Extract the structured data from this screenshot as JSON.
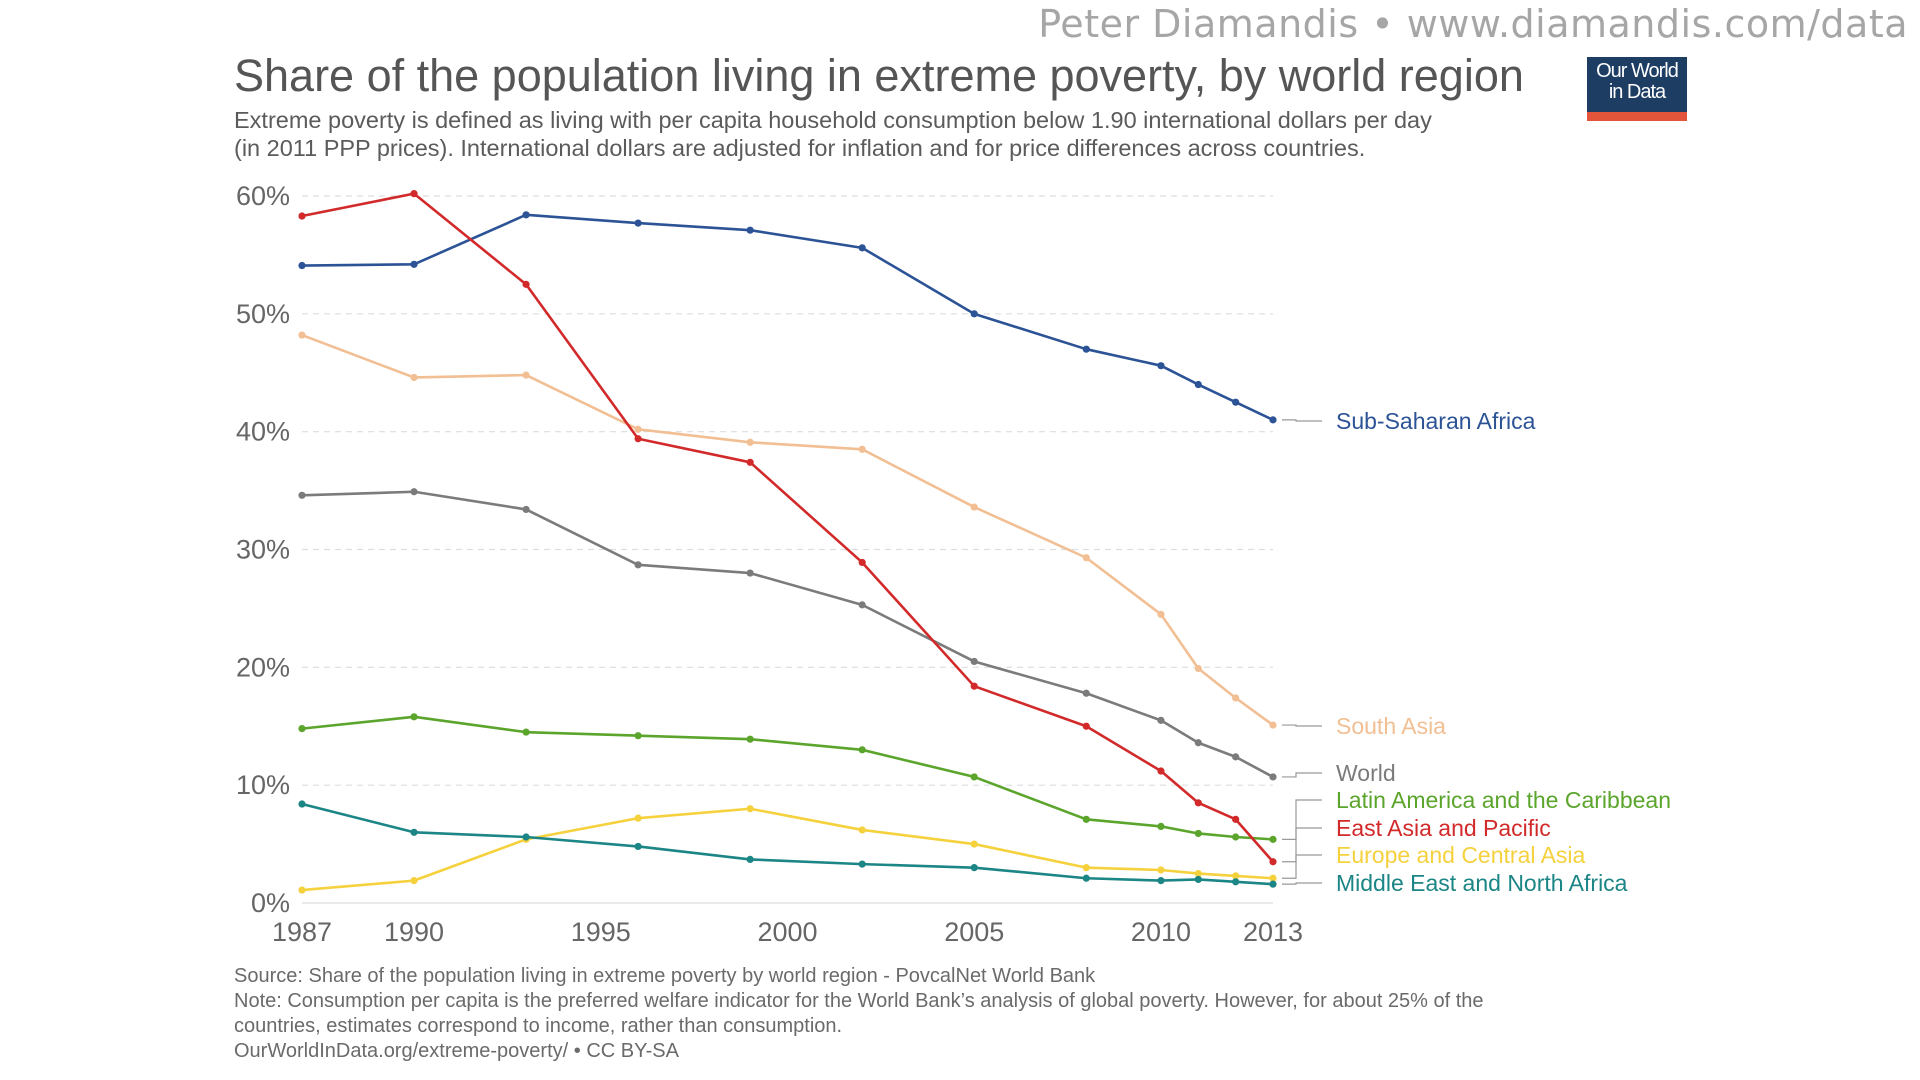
{
  "credit": "Peter Diamandis  •  www.diamandis.com/data",
  "title": "Share of the population living in extreme poverty, by world region",
  "subtitle_line1": "Extreme poverty is defined as living with per capita household consumption below 1.90 international dollars per day",
  "subtitle_line2": "(in 2011 PPP prices). International dollars are adjusted for inflation and for price differences across countries.",
  "logo": {
    "line1": "Our World",
    "line2": "in Data"
  },
  "footer": {
    "source": "Source: Share of the population living in extreme poverty by world region - PovcalNet World Bank",
    "note1": "Note: Consumption per capita is the preferred welfare indicator for the World Bank’s analysis of global poverty. However, for about 25% of the",
    "note2": "countries, estimates correspond to income, rather than consumption.",
    "license": "OurWorldInData.org/extreme-poverty/ • CC BY-SA"
  },
  "chart_data": {
    "type": "line",
    "title": "Share of the population living in extreme poverty, by world region",
    "xlabel": "",
    "ylabel": "",
    "xlim": [
      1987,
      2013
    ],
    "ylim": [
      0,
      60
    ],
    "grid": true,
    "legend": "right (end labels)",
    "x_ticks": [
      1987,
      1990,
      1995,
      2000,
      2005,
      2010,
      2013
    ],
    "y_ticks": [
      0,
      10,
      20,
      30,
      40,
      50,
      60
    ],
    "y_tick_labels": [
      "0%",
      "10%",
      "20%",
      "30%",
      "40%",
      "50%",
      "60%"
    ],
    "x": [
      1987,
      1990,
      1993,
      1996,
      1999,
      2002,
      2005,
      2008,
      2010,
      2011,
      2012,
      2013
    ],
    "series": [
      {
        "name": "Sub-Saharan Africa",
        "color": "#2c5396",
        "values": [
          54.1,
          54.2,
          58.4,
          57.7,
          57.1,
          55.6,
          50.0,
          47.0,
          45.6,
          44.0,
          42.5,
          41.0
        ]
      },
      {
        "name": "South Asia",
        "color": "#f1bf93",
        "values": [
          48.2,
          44.6,
          44.8,
          40.2,
          39.1,
          38.5,
          33.6,
          29.3,
          24.5,
          19.9,
          17.4,
          15.1
        ]
      },
      {
        "name": "World",
        "color": "#7b7b7b",
        "values": [
          34.6,
          34.9,
          33.4,
          28.7,
          28.0,
          25.3,
          20.5,
          17.8,
          15.5,
          13.6,
          12.4,
          10.7
        ]
      },
      {
        "name": "Latin America and the Caribbean",
        "color": "#5ba52c",
        "values": [
          14.8,
          15.8,
          14.5,
          14.2,
          13.9,
          13.0,
          10.7,
          7.1,
          6.5,
          5.9,
          5.6,
          5.4
        ]
      },
      {
        "name": "East Asia and Pacific",
        "color": "#d22a2a",
        "values": [
          58.3,
          60.2,
          52.5,
          39.4,
          37.4,
          28.9,
          18.4,
          15.0,
          11.2,
          8.5,
          7.1,
          3.5
        ]
      },
      {
        "name": "Europe and Central Asia",
        "color": "#f5d13d",
        "values": [
          1.1,
          1.9,
          5.4,
          7.2,
          8.0,
          6.2,
          5.0,
          3.0,
          2.8,
          2.5,
          2.3,
          2.1
        ]
      },
      {
        "name": "Middle East and North Africa",
        "color": "#1c8585",
        "values": [
          8.4,
          6.0,
          5.6,
          4.8,
          3.7,
          3.3,
          3.0,
          2.1,
          1.9,
          2.0,
          1.8,
          1.6
        ]
      }
    ]
  }
}
